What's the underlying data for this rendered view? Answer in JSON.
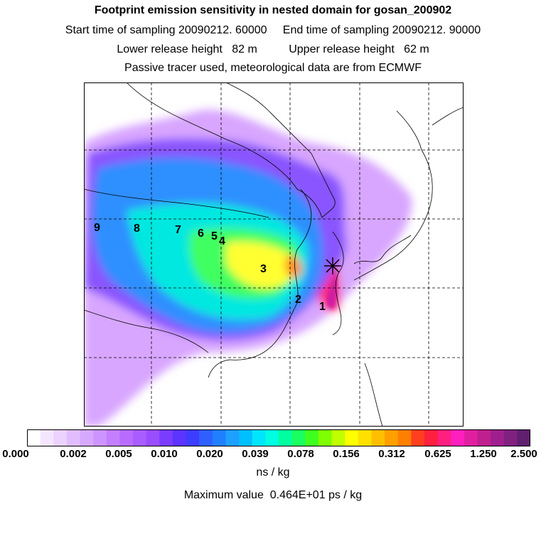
{
  "header": {
    "title": "Footprint emission sensitivity in nested domain for gosan_200902",
    "sampling_line": "Start time of sampling 20090212. 60000     End time of sampling 20090212. 90000",
    "release_line": "Lower release height   82 m          Upper release height   62 m",
    "tracer_line": "Passive tracer used, meteorological data are from ECMWF"
  },
  "map": {
    "site_marker": "gosan",
    "labels": [
      "1",
      "2",
      "3",
      "4",
      "5",
      "6",
      "7",
      "8",
      "9"
    ]
  },
  "colorbar": {
    "colors": [
      "#ffffff",
      "#f5e6ff",
      "#ebd2ff",
      "#e1bdff",
      "#d7a8ff",
      "#cd94ff",
      "#c37fff",
      "#b96bff",
      "#a95cff",
      "#9a4dff",
      "#7a3dff",
      "#5c33ff",
      "#3d3dff",
      "#2f5fff",
      "#1f7fff",
      "#1f9fff",
      "#00bfff",
      "#00e5ff",
      "#00ffe0",
      "#00ff9f",
      "#1aff5f",
      "#3fff1f",
      "#7fff00",
      "#bfff00",
      "#ffff00",
      "#ffe000",
      "#ffbf00",
      "#ff9f00",
      "#ff7f00",
      "#ff3f1f",
      "#ff1f3f",
      "#ff1f7f",
      "#ff1fbf",
      "#e01fa0",
      "#c01f8f",
      "#a01f8f",
      "#80207f",
      "#601f6f"
    ],
    "ticks": [
      "0.000",
      "0.002",
      "0.005",
      "0.010",
      "0.020",
      "0.039",
      "0.078",
      "0.156",
      "0.312",
      "0.625",
      "1.250",
      "2.500"
    ],
    "units": "ns / kg"
  },
  "footer": {
    "max_value": "Maximum value  0.464E+01 ps / kg"
  }
}
